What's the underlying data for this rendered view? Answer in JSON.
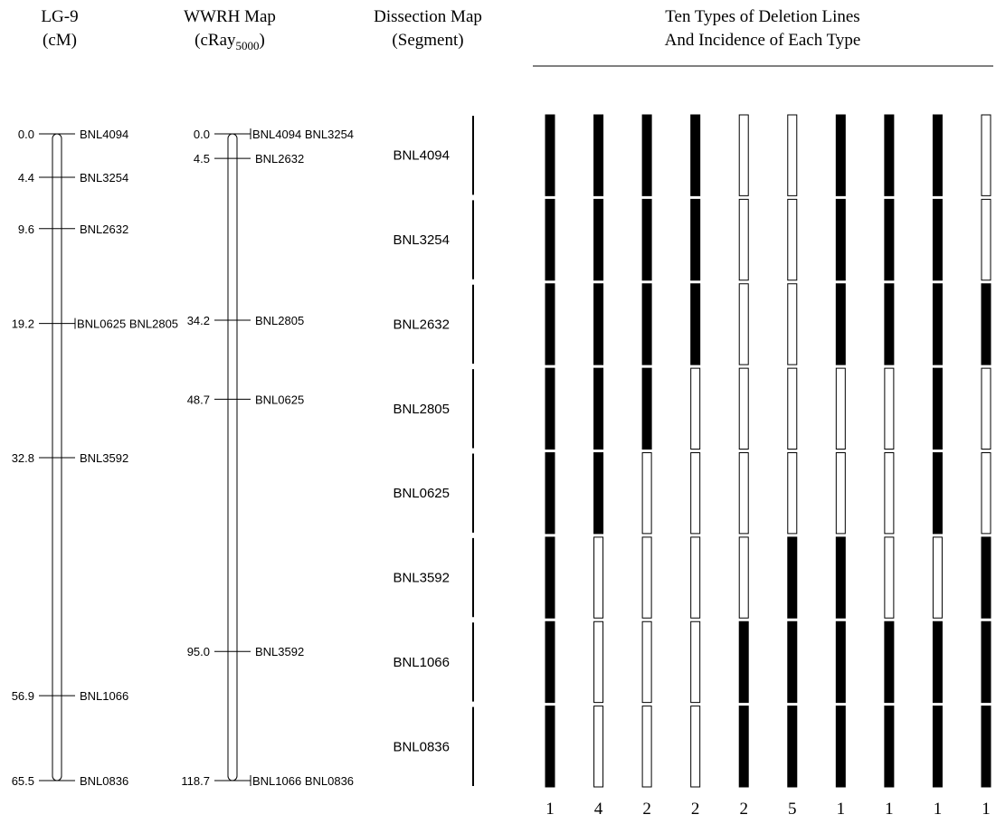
{
  "lg_map": {
    "title": "LG-9",
    "unit": "(cM)",
    "markers": [
      {
        "pos": "0.0",
        "value": 0.0,
        "label": "BNL4094"
      },
      {
        "pos": "4.4",
        "value": 4.4,
        "label": "BNL3254"
      },
      {
        "pos": "9.6",
        "value": 9.6,
        "label": "BNL2632"
      },
      {
        "pos": "19.2",
        "value": 19.2,
        "label": "BNL0625 BNL2805"
      },
      {
        "pos": "32.8",
        "value": 32.8,
        "label": "BNL3592"
      },
      {
        "pos": "56.9",
        "value": 56.9,
        "label": "BNL1066"
      },
      {
        "pos": "65.5",
        "value": 65.5,
        "label": "BNL0836"
      }
    ]
  },
  "wwrh_map": {
    "title": "WWRH Map",
    "unit_prefix": "(cRay",
    "unit_sub": "5000",
    "unit_suffix": ")",
    "markers": [
      {
        "pos": "0.0",
        "value": 0.0,
        "label": "BNL4094 BNL3254"
      },
      {
        "pos": "4.5",
        "value": 4.5,
        "label": "BNL2632"
      },
      {
        "pos": "34.2",
        "value": 34.2,
        "label": "BNL2805"
      },
      {
        "pos": "48.7",
        "value": 48.7,
        "label": "BNL0625"
      },
      {
        "pos": "95.0",
        "value": 95.0,
        "label": "BNL3592"
      },
      {
        "pos": "118.7",
        "value": 118.7,
        "label": "BNL1066 BNL0836"
      }
    ]
  },
  "dissection_map": {
    "title": "Dissection Map",
    "subtitle": "(Segment)",
    "segments": [
      "BNL4094",
      "BNL3254",
      "BNL2632",
      "BNL2805",
      "BNL0625",
      "BNL3592",
      "BNL1066",
      "BNL0836"
    ]
  },
  "deletion_lines": {
    "title_line1": "Ten Types of Deletion Lines",
    "title_line2": "And Incidence of Each Type",
    "types": [
      {
        "incidence": "1",
        "retained": [
          1,
          1,
          1,
          1,
          1,
          1,
          1,
          1
        ]
      },
      {
        "incidence": "4",
        "retained": [
          1,
          1,
          1,
          1,
          1,
          0,
          0,
          0
        ]
      },
      {
        "incidence": "2",
        "retained": [
          1,
          1,
          1,
          1,
          0,
          0,
          0,
          0
        ]
      },
      {
        "incidence": "2",
        "retained": [
          1,
          1,
          1,
          0,
          0,
          0,
          0,
          0
        ]
      },
      {
        "incidence": "2",
        "retained": [
          0,
          0,
          0,
          0,
          0,
          0,
          1,
          1
        ]
      },
      {
        "incidence": "5",
        "retained": [
          0,
          0,
          0,
          0,
          0,
          1,
          1,
          1
        ]
      },
      {
        "incidence": "1",
        "retained": [
          1,
          1,
          1,
          0,
          0,
          1,
          1,
          1
        ]
      },
      {
        "incidence": "1",
        "retained": [
          1,
          1,
          1,
          0,
          0,
          0,
          1,
          1
        ]
      },
      {
        "incidence": "1",
        "retained": [
          1,
          1,
          1,
          1,
          1,
          0,
          1,
          1
        ]
      },
      {
        "incidence": "1",
        "retained": [
          0,
          0,
          1,
          0,
          0,
          1,
          1,
          1
        ]
      }
    ]
  },
  "colors": {
    "filled": "#000000",
    "empty": "#ffffff",
    "stroke": "#000000"
  }
}
